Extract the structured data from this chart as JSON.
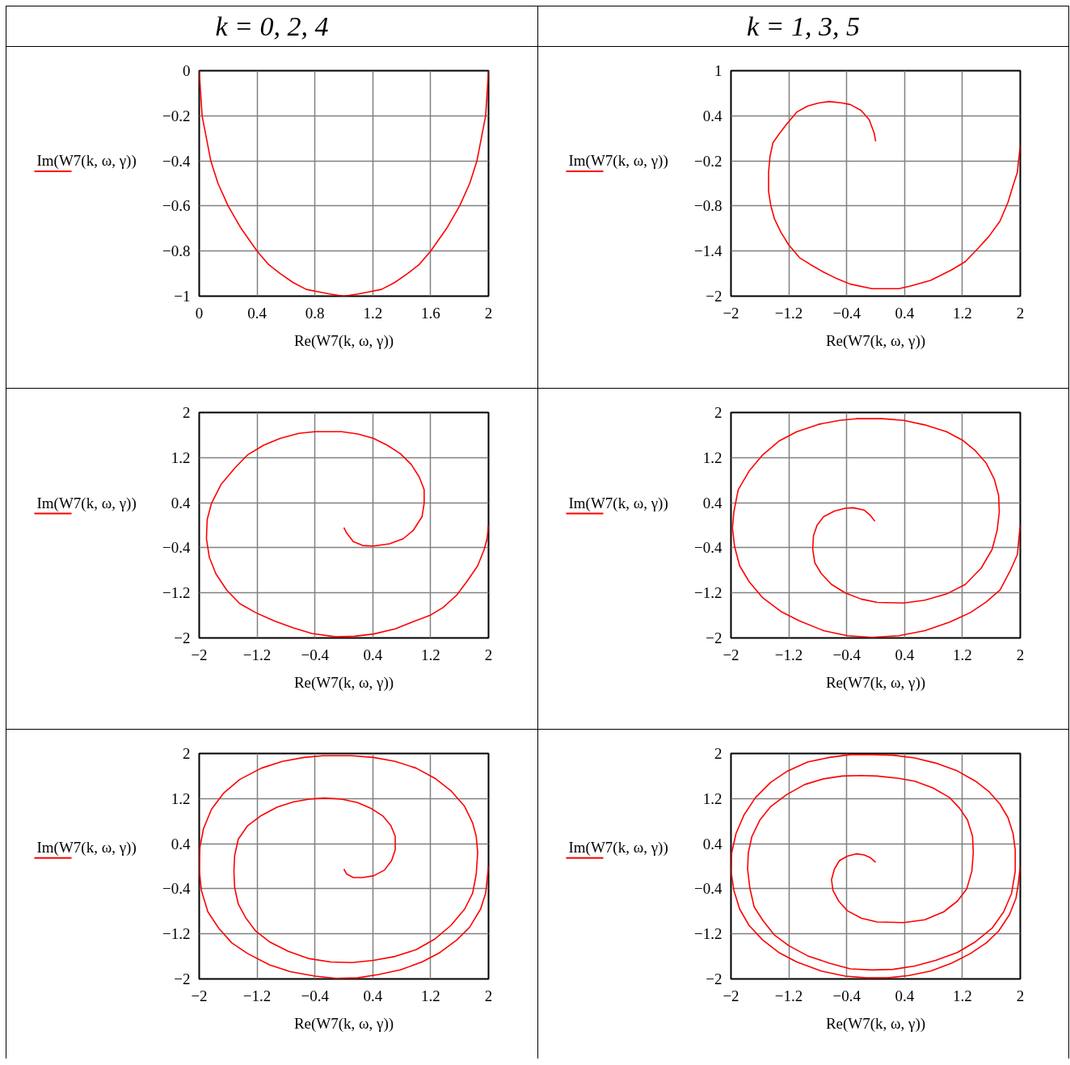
{
  "chart_data": [
    {
      "type": "line",
      "title": "k = 0, 2, 4",
      "xlabel": "Re(W7(k, ω, γ))",
      "xlim": [
        0,
        2
      ],
      "ylim": [
        -1,
        0
      ],
      "xticks": [
        0,
        0.4,
        0.8,
        1.2,
        1.6,
        2
      ],
      "yticks": [
        -1,
        -0.8,
        -0.6,
        -0.4,
        -0.2,
        0
      ],
      "grid": true,
      "legend": "left",
      "series": [
        {
          "name": "Im(W7(k, ω, γ))",
          "color": "#ff0000",
          "x": [
            0,
            0.01,
            0.02,
            0.05,
            0.08,
            0.13,
            0.2,
            0.29,
            0.4,
            0.48,
            0.56,
            0.65,
            0.74,
            0.82,
            0.9,
            1,
            1.1,
            1.18,
            1.26,
            1.35,
            1.44,
            1.52,
            1.6,
            1.71,
            1.8,
            1.87,
            1.92,
            1.95,
            1.98,
            1.99,
            2
          ],
          "values": [
            0,
            -0.1,
            -0.2,
            -0.3,
            -0.4,
            -0.5,
            -0.6,
            -0.7,
            -0.8,
            -0.86,
            -0.9,
            -0.94,
            -0.97,
            -0.98,
            -0.99,
            -1,
            -0.99,
            -0.98,
            -0.97,
            -0.94,
            -0.9,
            -0.86,
            -0.8,
            -0.7,
            -0.6,
            -0.5,
            -0.4,
            -0.3,
            -0.2,
            -0.1,
            0
          ]
        }
      ]
    },
    {
      "type": "line",
      "title": "k = 1, 3, 5",
      "xlabel": "Re(W7(k, ω, γ))",
      "xlim": [
        -2,
        2
      ],
      "ylim": [
        -2,
        1
      ],
      "xticks": [
        -2,
        -1.2,
        -0.4,
        0.4,
        1.2,
        2
      ],
      "yticks": [
        -2,
        -1.4,
        -0.8,
        -0.2,
        0.4,
        1
      ],
      "grid": true,
      "legend": "left",
      "series": [
        {
          "name": "Im(W7(k, ω, γ))",
          "color": "#ff0000",
          "x": [
            0,
            -0.02,
            -0.09,
            -0.2,
            -0.35,
            -0.46,
            -0.64,
            -0.79,
            -0.94,
            -1.09,
            -1.23,
            -1.34,
            -1.42,
            -1.46,
            -1.48,
            -1.48,
            -1.45,
            -1.4,
            -1.31,
            -1.2,
            -1.05,
            -0.9,
            -0.72,
            -0.53,
            -0.35,
            -0.05,
            0.32,
            0.46,
            0.76,
            1.05,
            1.24,
            1.42,
            1.57,
            1.72,
            1.83,
            1.9,
            1.96,
            1.97,
            2
          ],
          "values": [
            0.06,
            0.17,
            0.35,
            0.47,
            0.55,
            0.57,
            0.59,
            0.57,
            0.53,
            0.45,
            0.29,
            0.15,
            0.04,
            -0.14,
            -0.35,
            -0.61,
            -0.79,
            -0.97,
            -1.15,
            -1.32,
            -1.49,
            -1.58,
            -1.68,
            -1.77,
            -1.84,
            -1.9,
            -1.9,
            -1.87,
            -1.79,
            -1.65,
            -1.54,
            -1.36,
            -1.2,
            -1,
            -0.75,
            -0.53,
            -0.35,
            -0.25,
            0
          ]
        }
      ]
    },
    {
      "type": "line",
      "xlabel": "Re(W7(k, ω, γ))",
      "xlim": [
        -2,
        2
      ],
      "ylim": [
        -2,
        2
      ],
      "xticks": [
        -2,
        -1.2,
        -0.4,
        0.4,
        1.2,
        2
      ],
      "yticks": [
        -2,
        -1.2,
        -0.4,
        0.4,
        1.2,
        2
      ],
      "grid": true,
      "legend": "left",
      "series": [
        {
          "name": "Im(W7(k, ω, γ))",
          "color": "#ff0000",
          "x": [
            0,
            0.04,
            0.13,
            0.26,
            0.41,
            0.63,
            0.82,
            0.96,
            1.08,
            1.11,
            1.11,
            1.04,
            0.93,
            0.78,
            0.6,
            0.41,
            0.19,
            -0.03,
            -0.4,
            -0.62,
            -0.88,
            -1.11,
            -1.33,
            -1.51,
            -1.7,
            -1.83,
            -1.89,
            -1.9,
            -1.86,
            -1.77,
            -1.62,
            -1.44,
            -1.22,
            -0.96,
            -0.7,
            -0.44,
            -0.11,
            0.15,
            0.41,
            0.71,
            0.96,
            1.19,
            1.37,
            1.56,
            1.7,
            1.85,
            1.94,
            1.98,
            2
          ],
          "values": [
            -0.04,
            -0.14,
            -0.29,
            -0.36,
            -0.37,
            -0.33,
            -0.24,
            -0.09,
            0.15,
            0.39,
            0.63,
            0.86,
            1.08,
            1.27,
            1.42,
            1.54,
            1.62,
            1.66,
            1.66,
            1.63,
            1.54,
            1.42,
            1.25,
            1.01,
            0.72,
            0.39,
            0.1,
            -0.24,
            -0.57,
            -0.86,
            -1.15,
            -1.39,
            -1.55,
            -1.7,
            -1.82,
            -1.92,
            -1.98,
            -1.97,
            -1.93,
            -1.84,
            -1.71,
            -1.6,
            -1.46,
            -1.24,
            -1,
            -0.72,
            -0.43,
            -0.24,
            0
          ]
        }
      ]
    },
    {
      "type": "line",
      "xlabel": "Re(W7(k, ω, γ))",
      "xlim": [
        -2,
        2
      ],
      "ylim": [
        -2,
        2
      ],
      "xticks": [
        -2,
        -1.2,
        -0.4,
        0.4,
        1.2,
        2
      ],
      "yticks": [
        -2,
        -1.2,
        -0.4,
        0.4,
        1.2,
        2
      ],
      "grid": true,
      "legend": "left",
      "series": [
        {
          "name": "Im(W7(k, ω, γ))",
          "color": "#ff0000",
          "x": [
            -0.01,
            -0.07,
            -0.16,
            -0.31,
            -0.42,
            -0.57,
            -0.72,
            -0.81,
            -0.86,
            -0.87,
            -0.84,
            -0.75,
            -0.61,
            -0.42,
            -0.2,
            0.02,
            0.39,
            0.68,
            0.98,
            1.24,
            1.46,
            1.61,
            1.68,
            1.71,
            1.7,
            1.64,
            1.53,
            1.38,
            1.2,
            0.98,
            0.68,
            0.39,
            0.09,
            -0.27,
            -0.5,
            -0.79,
            -1.09,
            -1.34,
            -1.56,
            -1.75,
            -1.9,
            -1.96,
            -1.98,
            -1.95,
            -1.88,
            -1.75,
            -1.56,
            -1.31,
            -1.05,
            -0.72,
            -0.39,
            -0.05,
            0.32,
            0.68,
            1.02,
            1.31,
            1.53,
            1.72,
            1.86,
            1.96,
            1.98,
            2
          ],
          "values": [
            0.07,
            0.17,
            0.27,
            0.31,
            0.3,
            0.25,
            0.15,
            0,
            -0.19,
            -0.43,
            -0.67,
            -0.86,
            -1.05,
            -1.2,
            -1.31,
            -1.37,
            -1.38,
            -1.33,
            -1.22,
            -1.05,
            -0.76,
            -0.43,
            -0.09,
            0.24,
            0.53,
            0.82,
            1.1,
            1.32,
            1.51,
            1.66,
            1.78,
            1.86,
            1.89,
            1.89,
            1.86,
            1.79,
            1.66,
            1.49,
            1.25,
            0.96,
            0.63,
            0.24,
            -0.05,
            -0.38,
            -0.72,
            -1,
            -1.29,
            -1.53,
            -1.7,
            -1.87,
            -1.96,
            -1.99,
            -1.96,
            -1.87,
            -1.72,
            -1.55,
            -1.36,
            -1.15,
            -0.81,
            -0.52,
            -0.24,
            0
          ]
        }
      ]
    },
    {
      "type": "line",
      "xlabel": "Re(W7(k, ω, γ))",
      "xlim": [
        -2,
        2
      ],
      "ylim": [
        -2,
        2
      ],
      "xticks": [
        -2,
        -1.2,
        -0.4,
        0.4,
        1.2,
        2
      ],
      "yticks": [
        -2,
        -1.2,
        -0.4,
        0.4,
        1.2,
        2
      ],
      "grid": true,
      "legend": "left",
      "series": [
        {
          "name": "Im(W7(k, ω, γ))",
          "color": "#ff0000",
          "x": [
            0,
            0.04,
            0.13,
            0.26,
            0.41,
            0.56,
            0.66,
            0.71,
            0.71,
            0.65,
            0.54,
            0.37,
            0.19,
            -0.03,
            -0.27,
            -0.48,
            -0.7,
            -0.92,
            -1.14,
            -1.33,
            -1.46,
            -1.51,
            -1.52,
            -1.51,
            -1.46,
            -1.36,
            -1.22,
            -1.03,
            -0.77,
            -0.48,
            -0.18,
            0.11,
            0.41,
            0.71,
            1,
            1.26,
            1.48,
            1.67,
            1.78,
            1.83,
            1.85,
            1.83,
            1.78,
            1.67,
            1.48,
            1.26,
            1,
            0.71,
            0.41,
            0.11,
            -0.29,
            -0.55,
            -0.85,
            -1.14,
            -1.44,
            -1.66,
            -1.83,
            -1.94,
            -1.99,
            -2,
            -1.97,
            -1.88,
            -1.73,
            -1.55,
            -1.33,
            -1.03,
            -0.74,
            -0.4,
            -0.11,
            0.19,
            0.48,
            0.78,
            1.08,
            1.33,
            1.56,
            1.74,
            1.89,
            1.96,
            2
          ],
          "values": [
            -0.05,
            -0.14,
            -0.2,
            -0.2,
            -0.17,
            -0.07,
            0.1,
            0.29,
            0.53,
            0.72,
            0.89,
            1.03,
            1.13,
            1.19,
            1.21,
            1.19,
            1.14,
            1.05,
            0.9,
            0.72,
            0.48,
            0.19,
            -0.09,
            -0.38,
            -0.67,
            -0.91,
            -1.15,
            -1.34,
            -1.51,
            -1.64,
            -1.7,
            -1.71,
            -1.67,
            -1.6,
            -1.48,
            -1.29,
            -1.05,
            -0.76,
            -0.48,
            -0.14,
            0.24,
            0.53,
            0.77,
            1.06,
            1.34,
            1.56,
            1.74,
            1.86,
            1.93,
            1.96,
            1.96,
            1.93,
            1.86,
            1.74,
            1.54,
            1.3,
            1.01,
            0.67,
            0.34,
            -0.05,
            -0.43,
            -0.81,
            -1.1,
            -1.36,
            -1.55,
            -1.75,
            -1.87,
            -1.95,
            -1.99,
            -1.98,
            -1.92,
            -1.84,
            -1.7,
            -1.53,
            -1.31,
            -1.08,
            -0.76,
            -0.48,
            0
          ]
        }
      ]
    },
    {
      "type": "line",
      "xlabel": "Re(W7(k, ω, γ))",
      "xlim": [
        -2,
        2
      ],
      "ylim": [
        -2,
        2
      ],
      "xticks": [
        -2,
        -1.2,
        -0.4,
        0.4,
        1.2,
        2
      ],
      "yticks": [
        -2,
        -1.2,
        -0.4,
        0.4,
        1.2,
        2
      ],
      "grid": true,
      "legend": "left",
      "series": [
        {
          "name": "Im(W7(k, ω, γ))",
          "color": "#ff0000",
          "x": [
            0,
            -0.07,
            -0.16,
            -0.27,
            -0.39,
            -0.5,
            -0.57,
            -0.61,
            -0.59,
            -0.51,
            -0.39,
            -0.2,
            0.02,
            0.39,
            0.68,
            0.94,
            1.13,
            1.26,
            1.33,
            1.35,
            1.34,
            1.27,
            1.16,
            1.02,
            0.79,
            0.54,
            0.32,
            0.02,
            -0.2,
            -0.46,
            -0.72,
            -0.98,
            -1.23,
            -1.45,
            -1.6,
            -1.71,
            -1.76,
            -1.77,
            -1.74,
            -1.68,
            -1.56,
            -1.4,
            -1.2,
            -0.94,
            -0.64,
            -0.35,
            -0.05,
            0.24,
            0.54,
            0.83,
            1.13,
            1.38,
            1.61,
            1.77,
            1.88,
            1.93,
            1.93,
            1.9,
            1.83,
            1.72,
            1.57,
            1.38,
            1.13,
            0.83,
            0.54,
            0.24,
            -0.05,
            -0.35,
            -0.64,
            -0.94,
            -1.23,
            -1.45,
            -1.66,
            -1.82,
            -1.93,
            -1.99,
            -2,
            -1.96,
            -1.88,
            -1.75,
            -1.56,
            -1.34,
            -1.09,
            -0.75,
            -0.42,
            -0.13,
            0.17,
            0.46,
            0.76,
            1.05,
            1.31,
            1.53,
            1.7,
            1.85,
            1.94,
            1.97,
            2
          ],
          "values": [
            0.07,
            0.15,
            0.2,
            0.22,
            0.18,
            0.1,
            -0.05,
            -0.24,
            -0.43,
            -0.62,
            -0.79,
            -0.92,
            -0.99,
            -1,
            -0.95,
            -0.81,
            -0.62,
            -0.4,
            -0.09,
            0.24,
            0.53,
            0.82,
            1.03,
            1.22,
            1.39,
            1.51,
            1.56,
            1.6,
            1.61,
            1.6,
            1.55,
            1.45,
            1.27,
            1.06,
            0.82,
            0.53,
            0.24,
            -0.05,
            -0.38,
            -0.72,
            -0.96,
            -1.22,
            -1.41,
            -1.59,
            -1.72,
            -1.82,
            -1.84,
            -1.83,
            -1.77,
            -1.67,
            -1.53,
            -1.34,
            -1.1,
            -0.81,
            -0.48,
            -0.09,
            0.29,
            0.58,
            0.86,
            1.1,
            1.32,
            1.51,
            1.69,
            1.83,
            1.92,
            1.97,
            1.98,
            1.98,
            1.93,
            1.85,
            1.68,
            1.49,
            1.22,
            0.91,
            0.58,
            0.24,
            -0.09,
            -0.43,
            -0.76,
            -1.05,
            -1.31,
            -1.53,
            -1.7,
            -1.86,
            -1.95,
            -1.98,
            -1.98,
            -1.94,
            -1.86,
            -1.72,
            -1.55,
            -1.36,
            -1.15,
            -0.86,
            -0.57,
            -0.33,
            0
          ]
        }
      ]
    }
  ]
}
